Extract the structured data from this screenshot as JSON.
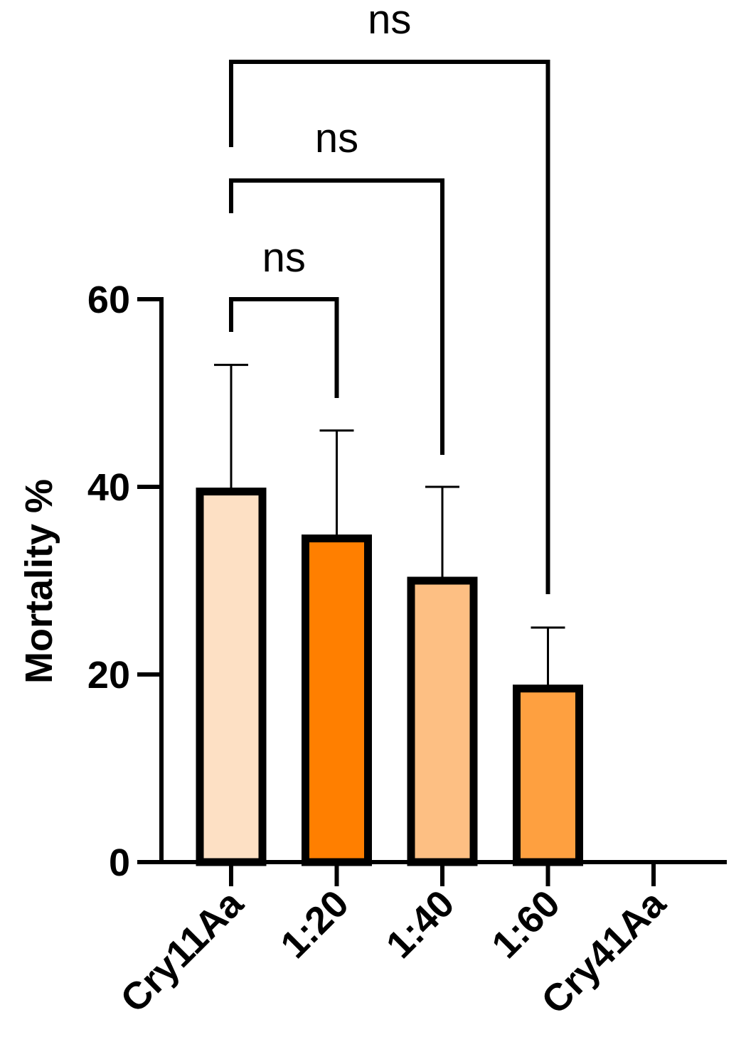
{
  "chart_data": {
    "type": "bar",
    "ylabel": "Mortality %",
    "xlabel": "",
    "ylim": [
      0,
      60
    ],
    "yticks": [
      "0",
      "20",
      "40",
      "60"
    ],
    "categories": [
      "Cry11Aa",
      "1:20",
      "1:40",
      "1:60",
      "Cry41Aa"
    ],
    "values": [
      39.5,
      34.5,
      30,
      18.5,
      0
    ],
    "errors": [
      13.5,
      11.5,
      10,
      6.5,
      0
    ],
    "colors": [
      "#fde0c4",
      "#ff7f00",
      "#fdbf83",
      "#fea040",
      "#ffffff"
    ],
    "grid": false,
    "comparisons": [
      {
        "from": "Cry11Aa",
        "to": "1:20",
        "label": "ns"
      },
      {
        "from": "Cry11Aa",
        "to": "1:40",
        "label": "ns"
      },
      {
        "from": "Cry11Aa",
        "to": "1:60",
        "label": "ns"
      }
    ]
  }
}
